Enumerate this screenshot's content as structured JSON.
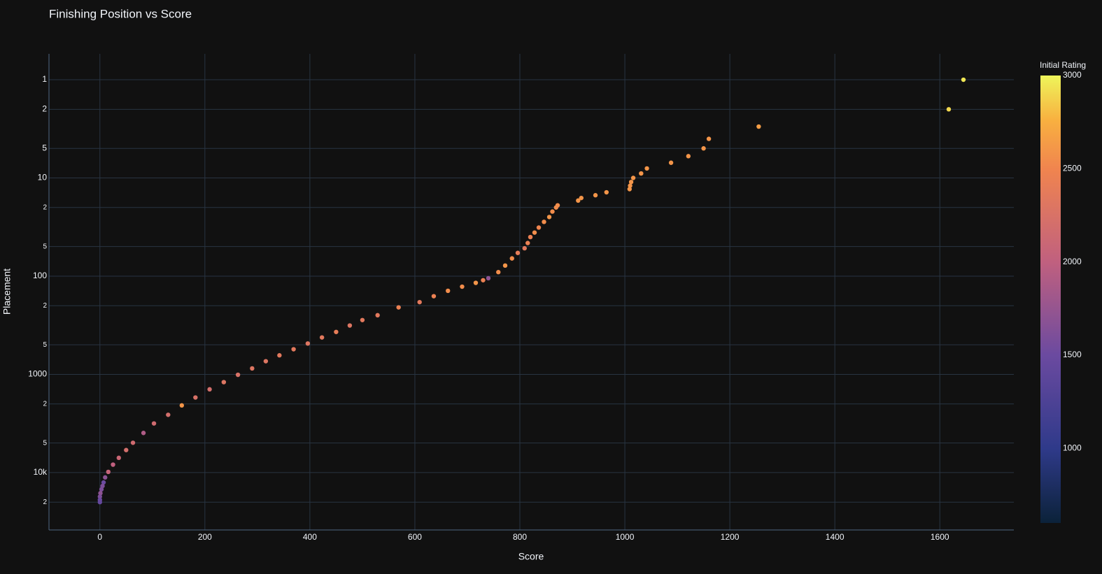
{
  "chart_data": {
    "type": "scatter",
    "title": "Finishing Position vs Score",
    "xlabel": "Score",
    "ylabel": "Placement",
    "colorbar_title": "Initial Rating",
    "xlim": [
      -97,
      1741
    ],
    "xticks": [
      0,
      200,
      400,
      600,
      800,
      1000,
      1200,
      1400,
      1600
    ],
    "ylim": [
      0.545,
      38400
    ],
    "ylog": true,
    "yreversed": true,
    "yticks": [
      1,
      2,
      5,
      10,
      {
        "value": 20,
        "label": "2"
      },
      {
        "value": 50,
        "label": "5"
      },
      100,
      {
        "value": 200,
        "label": "2"
      },
      {
        "value": 500,
        "label": "5"
      },
      1000,
      {
        "value": 2000,
        "label": "2"
      },
      {
        "value": 5000,
        "label": "5"
      },
      {
        "value": 10000,
        "label": "10k"
      },
      {
        "value": 20000,
        "label": "2"
      }
    ],
    "grid": true,
    "clim": [
      600,
      3000
    ],
    "cticks": [
      1000,
      1500,
      2000,
      2500,
      3000
    ],
    "colorscale": [
      [
        0,
        "#0b2239"
      ],
      [
        0.167,
        "#2f3a8a"
      ],
      [
        0.375,
        "#6b4aa0"
      ],
      [
        0.583,
        "#c0607f"
      ],
      [
        0.79,
        "#f0844f"
      ],
      [
        0.9,
        "#f8b040"
      ],
      [
        1,
        "#eef55a"
      ]
    ],
    "x": [
      1645,
      1617,
      1255,
      1160,
      1150,
      1121,
      1088,
      1042,
      1031,
      1016,
      1012,
      1010,
      1009,
      965,
      944,
      917,
      911,
      872,
      869,
      862,
      856,
      846,
      836,
      828,
      820,
      815,
      809,
      796,
      785,
      772,
      759,
      740,
      730,
      716,
      690,
      663,
      636,
      609,
      569,
      529,
      500,
      476,
      450,
      423,
      396,
      369,
      342,
      316,
      290,
      263,
      236,
      209,
      182,
      156,
      130,
      103,
      83,
      63,
      50,
      36,
      25,
      16,
      10,
      7,
      5,
      3,
      1,
      0,
      0,
      0
    ],
    "y": [
      1,
      2,
      3,
      4,
      5,
      6,
      7,
      8,
      9,
      10,
      11,
      12,
      13,
      14,
      15,
      16,
      17,
      19,
      20,
      22,
      25,
      28,
      32,
      36,
      40,
      46,
      52,
      58,
      66,
      78,
      91,
      105,
      110,
      117,
      128,
      141,
      160,
      184,
      208,
      250,
      280,
      318,
      370,
      421,
      485,
      555,
      640,
      735,
      870,
      1010,
      1200,
      1420,
      1720,
      2070,
      2580,
      3160,
      3950,
      4970,
      5900,
      7080,
      8300,
      9840,
      11200,
      12600,
      13700,
      14800,
      16200,
      17600,
      19000,
      20000
    ],
    "ratings": [
      2950,
      2900,
      2650,
      2600,
      2600,
      2600,
      2600,
      2600,
      2600,
      2600,
      2600,
      2600,
      2600,
      2600,
      2600,
      2600,
      2600,
      2550,
      2550,
      2550,
      2600,
      2550,
      2500,
      2550,
      2450,
      2450,
      2350,
      2400,
      2550,
      2600,
      2550,
      1700,
      2450,
      2600,
      2550,
      2550,
      2450,
      2350,
      2450,
      2350,
      2350,
      2300,
      2400,
      2350,
      2300,
      2350,
      2350,
      2300,
      2300,
      2250,
      2300,
      2200,
      2250,
      2600,
      2200,
      2150,
      1900,
      2150,
      2200,
      2100,
      2000,
      2050,
      1700,
      1500,
      1600,
      1600,
      1700,
      1600,
      1500,
      1450
    ]
  }
}
